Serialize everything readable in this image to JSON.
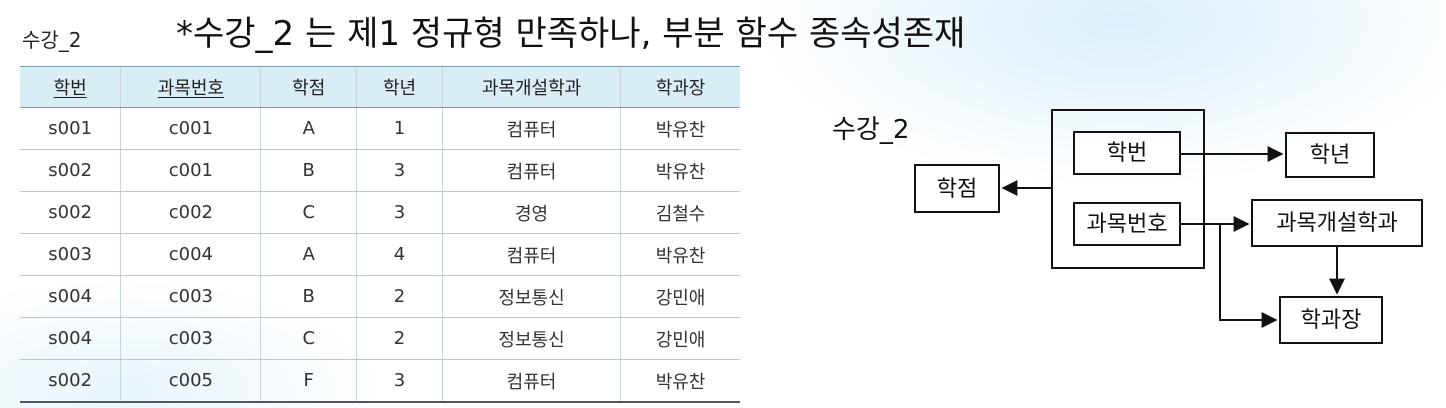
{
  "table_label": "수강_2",
  "headline": "*수강_2 는 제1 정규형 만족하나,   부분 함수 종속성존재",
  "table": {
    "columns": [
      "학번",
      "과목번호",
      "학점",
      "학년",
      "과목개설학과",
      "학과장"
    ],
    "key_columns": [
      0,
      1
    ],
    "rows": [
      [
        "s001",
        "c001",
        "A",
        "1",
        "컴퓨터",
        "박유찬"
      ],
      [
        "s002",
        "c001",
        "B",
        "3",
        "컴퓨터",
        "박유찬"
      ],
      [
        "s002",
        "c002",
        "C",
        "3",
        "경영",
        "김철수"
      ],
      [
        "s003",
        "c004",
        "A",
        "4",
        "컴퓨터",
        "박유찬"
      ],
      [
        "s004",
        "c003",
        "B",
        "2",
        "정보통신",
        "강민애"
      ],
      [
        "s004",
        "c003",
        "C",
        "2",
        "정보통신",
        "강민애"
      ],
      [
        "s002",
        "c005",
        "F",
        "3",
        "컴퓨터",
        "박유찬"
      ]
    ]
  },
  "diagram": {
    "title": "수강_2",
    "nodes": {
      "student_id": "학번",
      "course_id": "과목번호",
      "grade": "학점",
      "year": "학년",
      "course_dept": "과목개설학과",
      "dept_head": "학과장"
    }
  }
}
